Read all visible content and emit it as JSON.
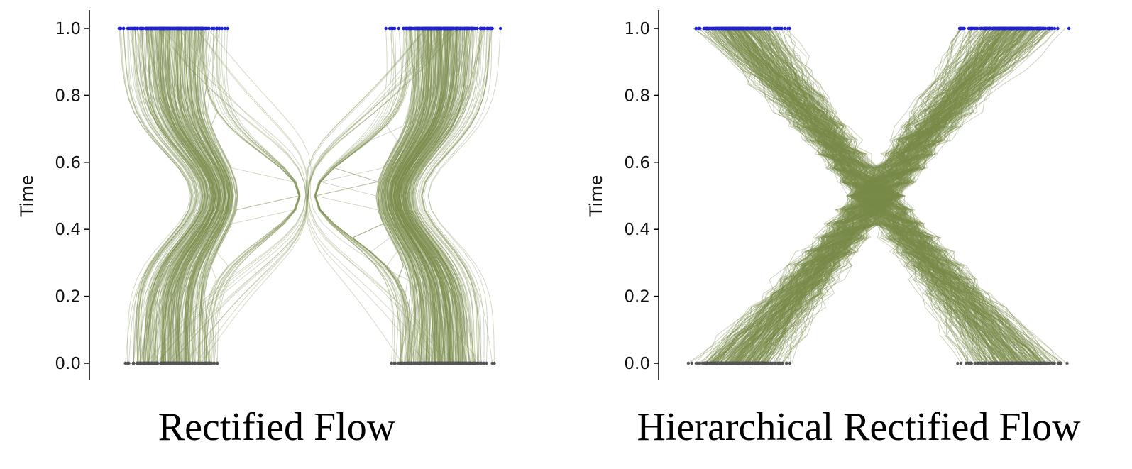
{
  "colors": {
    "trajectory": "#7a8c4a",
    "start_points": "#2020d8",
    "end_points": "#555555",
    "axis": "#000000",
    "background": "#ffffff"
  },
  "chart_data": [
    {
      "type": "line",
      "title": "Rectified Flow",
      "xlabel": "",
      "ylabel": "Time",
      "ylim": [
        0.0,
        1.0
      ],
      "y_ticks": [
        "0.0",
        "0.2",
        "0.4",
        "0.6",
        "0.8",
        "1.0"
      ],
      "x_ticks_shown": false,
      "grid": false,
      "series": [
        {
          "points_at": 1.0,
          "marker_color": "blue",
          "x_cluster_ranges": [
            [
              -6.0,
              -2.2
            ],
            [
              2.2,
              6.0
            ]
          ]
        },
        {
          "points_at": 0.0,
          "marker_color": "gray",
          "x_cluster_ranges": [
            [
              -6.0,
              -2.2
            ],
            [
              2.2,
              6.0
            ]
          ]
        }
      ],
      "trajectory_shape": "smooth curves that bundle toward x = 0 near time 0.5",
      "converge_at_time": 0.5
    },
    {
      "type": "line",
      "title": "Hierarchical Rectified Flow",
      "xlabel": "",
      "ylabel": "Time",
      "ylim": [
        0.0,
        1.0
      ],
      "y_ticks": [
        "0.0",
        "0.2",
        "0.4",
        "0.6",
        "0.8",
        "1.0"
      ],
      "x_ticks_shown": false,
      "grid": false,
      "series": [
        {
          "points_at": 1.0,
          "marker_color": "blue",
          "x_cluster_ranges": [
            [
              -6.0,
              -2.2
            ],
            [
              2.2,
              6.0
            ]
          ]
        },
        {
          "points_at": 0.0,
          "marker_color": "gray",
          "x_cluster_ranges": [
            [
              -6.0,
              -2.2
            ],
            [
              2.2,
              6.0
            ]
          ]
        }
      ],
      "trajectory_shape": "crossing piecewise-linear paths forming an X centered at x = 0, time 0.5",
      "converge_at_time": 0.5
    }
  ]
}
